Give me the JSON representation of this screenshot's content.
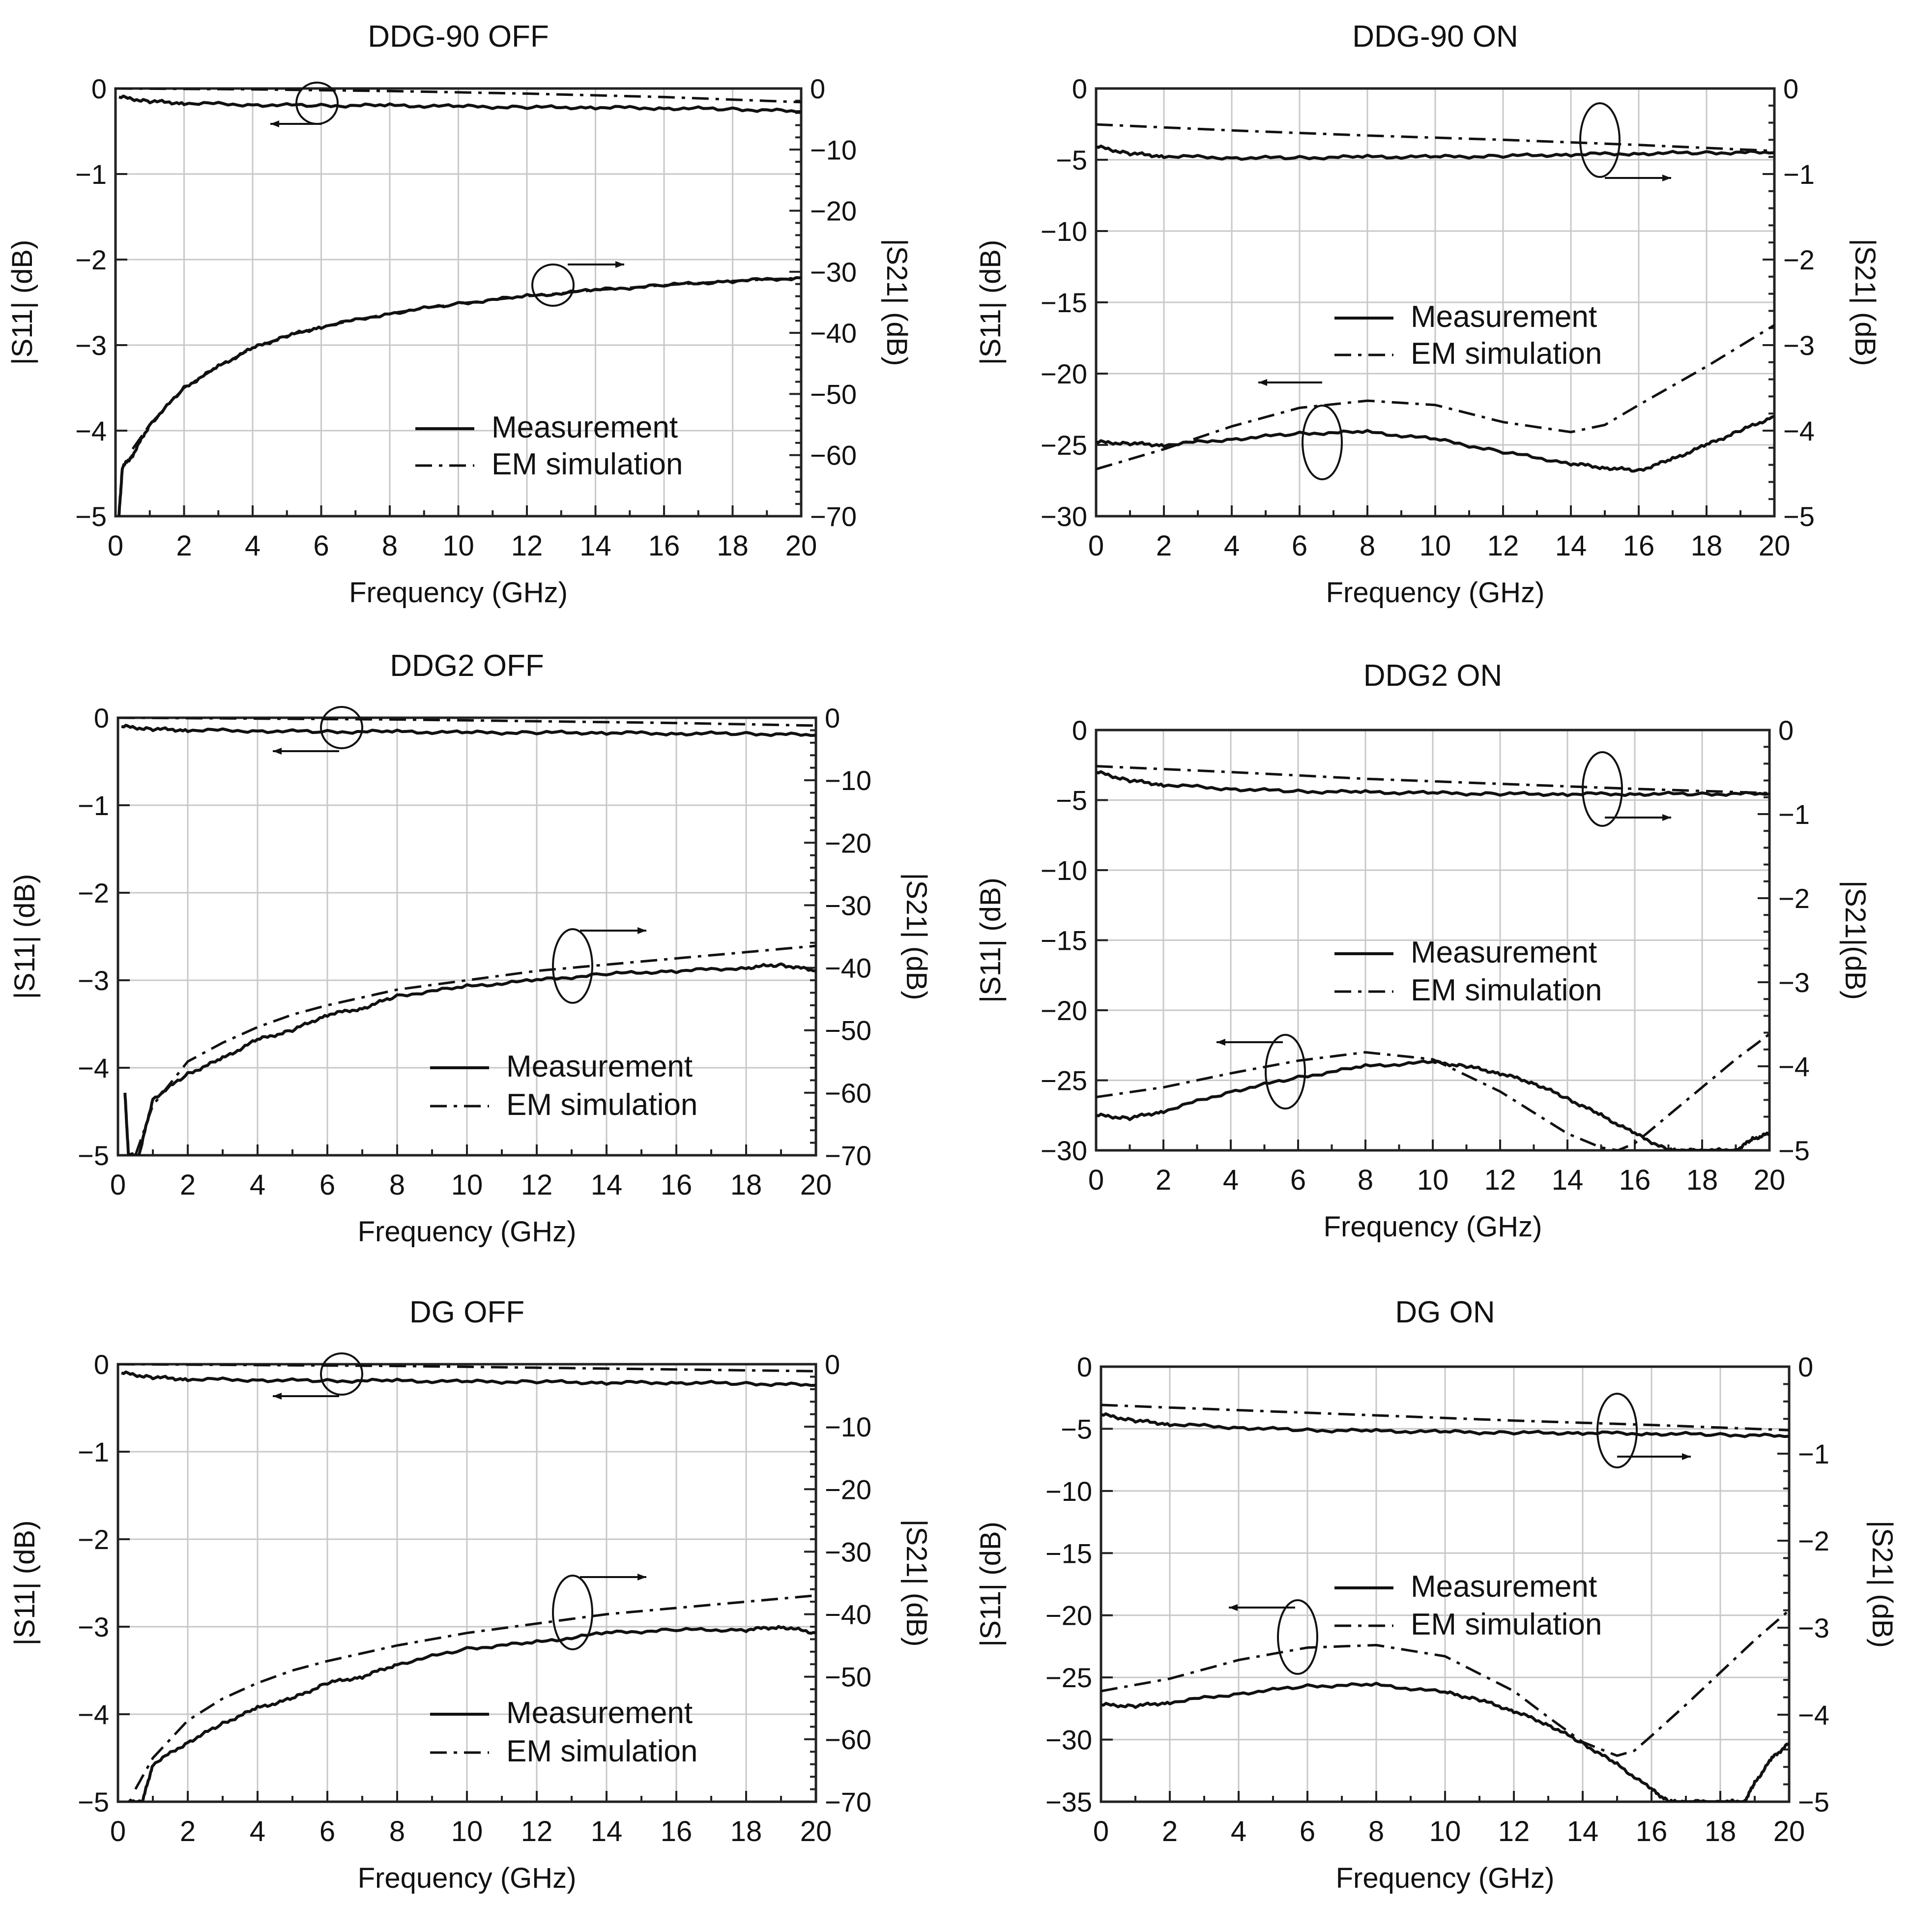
{
  "chart_data": [
    {
      "type": "line",
      "title": "DDG-90 OFF",
      "xlabel": "Frequency (GHz)",
      "ylabel": "|S11| (dB)",
      "y2label": "|S21| (dB)",
      "xlim": [
        0,
        20
      ],
      "ylim": [
        -5,
        0
      ],
      "y2lim": [
        -70,
        0
      ],
      "xticks": [
        "0",
        "2",
        "4",
        "6",
        "8",
        "10",
        "12",
        "14",
        "16",
        "18",
        "20"
      ],
      "yticks": [
        "0",
        "−1",
        "−2",
        "−3",
        "−4",
        "−5"
      ],
      "y2ticks": [
        "0",
        "−10",
        "−20",
        "−30",
        "−40",
        "−50",
        "−60",
        "−70"
      ],
      "legend": [
        "Measurement",
        "EM simulation"
      ],
      "legend_position": "bottom-right",
      "series": [
        {
          "name": "|S11| Measurement",
          "axis": "left",
          "style": "solid",
          "x": [
            0.1,
            1,
            2,
            4,
            6,
            8,
            10,
            12,
            14,
            16,
            18,
            20
          ],
          "y": [
            -0.1,
            -0.15,
            -0.17,
            -0.19,
            -0.2,
            -0.2,
            -0.21,
            -0.22,
            -0.22,
            -0.23,
            -0.24,
            -0.27
          ]
        },
        {
          "name": "|S11| EM simulation",
          "axis": "left",
          "style": "dashdot",
          "x": [
            0,
            4,
            8,
            12,
            16,
            20
          ],
          "y": [
            0,
            -0.01,
            -0.03,
            -0.06,
            -0.1,
            -0.16
          ]
        },
        {
          "name": "|S21| Measurement",
          "axis": "right",
          "style": "solid",
          "x": [
            0.1,
            0.2,
            0.5,
            1,
            2,
            3,
            4,
            5,
            6,
            8,
            10,
            12,
            14,
            16,
            18,
            20
          ],
          "y": [
            -70,
            -62,
            -60,
            -55,
            -49,
            -45.5,
            -42.5,
            -40.5,
            -39,
            -36.8,
            -35.2,
            -34,
            -33,
            -32.2,
            -31.5,
            -31
          ]
        },
        {
          "name": "|S21| EM simulation",
          "axis": "right",
          "style": "dashdot",
          "x": [
            0.5,
            1,
            2,
            3,
            4,
            5,
            6,
            8,
            10,
            12,
            14,
            16,
            18,
            20
          ],
          "y": [
            -59,
            -55,
            -49,
            -45.5,
            -42.5,
            -40.5,
            -39,
            -36.8,
            -35.2,
            -34,
            -33,
            -32.2,
            -31.5,
            -31
          ]
        }
      ]
    },
    {
      "type": "line",
      "title": "DDG-90 ON",
      "xlabel": "Frequency (GHz)",
      "ylabel": "|S11| (dB)",
      "y2label": "|S21| (dB)",
      "xlim": [
        0,
        20
      ],
      "ylim": [
        -30,
        0
      ],
      "y2lim": [
        -5,
        0
      ],
      "xticks": [
        "0",
        "2",
        "4",
        "6",
        "8",
        "10",
        "12",
        "14",
        "16",
        "18",
        "20"
      ],
      "yticks": [
        "0",
        "−5",
        "−10",
        "−15",
        "−20",
        "−25",
        "−30"
      ],
      "y2ticks": [
        "0",
        "−1",
        "−2",
        "−3",
        "−4",
        "−5"
      ],
      "legend": [
        "Measurement",
        "EM simulation"
      ],
      "legend_position": "center-right",
      "series": [
        {
          "name": "|S11| Measurement",
          "axis": "left",
          "style": "solid",
          "x": [
            0,
            1,
            2,
            4,
            6,
            8,
            10,
            12,
            14,
            15,
            16,
            17,
            18,
            19,
            20
          ],
          "y": [
            -24.8,
            -24.9,
            -25,
            -24.6,
            -24.2,
            -24.1,
            -24.6,
            -25.5,
            -26.3,
            -26.6,
            -26.8,
            -26,
            -25,
            -24,
            -23
          ]
        },
        {
          "name": "|S11| EM simulation",
          "axis": "left",
          "style": "dashdot",
          "x": [
            0,
            2,
            4,
            6,
            8,
            10,
            12,
            14,
            15,
            16,
            18,
            20
          ],
          "y": [
            -26.7,
            -25.3,
            -23.7,
            -22.4,
            -21.9,
            -22.2,
            -23.4,
            -24.1,
            -23.6,
            -22.2,
            -19.5,
            -16.6
          ]
        },
        {
          "name": "|S21| Measurement",
          "axis": "right",
          "style": "solid",
          "x": [
            0,
            1,
            2,
            4,
            6,
            8,
            10,
            12,
            14,
            16,
            18,
            20
          ],
          "y": [
            -0.68,
            -0.76,
            -0.79,
            -0.81,
            -0.81,
            -0.8,
            -0.8,
            -0.79,
            -0.77,
            -0.76,
            -0.75,
            -0.75
          ]
        },
        {
          "name": "|S21| EM simulation",
          "axis": "right",
          "style": "dashdot",
          "x": [
            0,
            4,
            8,
            12,
            16,
            20
          ],
          "y": [
            -0.42,
            -0.49,
            -0.55,
            -0.6,
            -0.66,
            -0.73
          ]
        }
      ]
    },
    {
      "type": "line",
      "title": "DDG2 OFF",
      "xlabel": "Frequency (GHz)",
      "ylabel": "|S11| (dB)",
      "y2label": "|S21| (dB)",
      "xlim": [
        0,
        20
      ],
      "ylim": [
        -5,
        0
      ],
      "y2lim": [
        -70,
        0
      ],
      "xticks": [
        "0",
        "2",
        "4",
        "6",
        "8",
        "10",
        "12",
        "14",
        "16",
        "18",
        "20"
      ],
      "yticks": [
        "0",
        "−1",
        "−2",
        "−3",
        "−4",
        "−5"
      ],
      "y2ticks": [
        "0",
        "−10",
        "−20",
        "−30",
        "−40",
        "−50",
        "−60",
        "−70"
      ],
      "legend": [
        "Measurement",
        "EM simulation"
      ],
      "legend_position": "bottom-right",
      "series": [
        {
          "name": "|S11| Measurement",
          "axis": "left",
          "style": "solid",
          "x": [
            0.1,
            1,
            2,
            4,
            6,
            8,
            10,
            12,
            14,
            16,
            18,
            20
          ],
          "y": [
            -0.1,
            -0.13,
            -0.14,
            -0.15,
            -0.16,
            -0.16,
            -0.17,
            -0.17,
            -0.17,
            -0.18,
            -0.18,
            -0.2
          ]
        },
        {
          "name": "|S11| EM simulation",
          "axis": "left",
          "style": "dashdot",
          "x": [
            0,
            4,
            8,
            12,
            16,
            20
          ],
          "y": [
            0,
            -0.01,
            -0.02,
            -0.04,
            -0.06,
            -0.09
          ]
        },
        {
          "name": "|S21| Measurement",
          "axis": "right",
          "style": "solid",
          "x": [
            0.2,
            0.3,
            0.6,
            1,
            2,
            3,
            4,
            5,
            6,
            7,
            8,
            10,
            12,
            14,
            16,
            18,
            19,
            20
          ],
          "y": [
            -60,
            -70,
            -70,
            -61,
            -57,
            -54.5,
            -51.5,
            -50,
            -47.5,
            -46.5,
            -44.5,
            -43,
            -42,
            -41,
            -40.5,
            -40,
            -39.5,
            -40.5
          ]
        },
        {
          "name": "|S21| EM simulation",
          "axis": "right",
          "style": "dashdot",
          "x": [
            0.5,
            1,
            2,
            3,
            4,
            5,
            6,
            8,
            10,
            12,
            14,
            16,
            18,
            20
          ],
          "y": [
            -70,
            -62,
            -55,
            -52,
            -49.5,
            -47.5,
            -46,
            -43.5,
            -42,
            -40.5,
            -39.5,
            -38.5,
            -37.5,
            -36.5
          ]
        }
      ]
    },
    {
      "type": "line",
      "title": "DDG2 ON",
      "xlabel": "Frequency (GHz)",
      "ylabel": "|S11| (dB)",
      "y2label": "|S21|(dB)",
      "xlim": [
        0,
        20
      ],
      "ylim": [
        -30,
        0
      ],
      "y2lim": [
        -5,
        0
      ],
      "xticks": [
        "0",
        "2",
        "4",
        "6",
        "8",
        "10",
        "12",
        "14",
        "16",
        "18",
        "20"
      ],
      "yticks": [
        "0",
        "−5",
        "−10",
        "−15",
        "−20",
        "−25",
        "−30"
      ],
      "y2ticks": [
        "0",
        "−1",
        "−2",
        "−3",
        "−4",
        "−5"
      ],
      "legend": [
        "Measurement",
        "EM simulation"
      ],
      "legend_position": "center-right",
      "series": [
        {
          "name": "|S11| Measurement",
          "axis": "left",
          "style": "solid",
          "x": [
            0,
            1,
            2,
            4,
            6,
            8,
            10,
            11,
            12,
            13,
            14,
            15,
            16,
            17,
            17.5,
            18,
            19,
            19.5,
            20
          ],
          "y": [
            -27.5,
            -27.7,
            -27.2,
            -25.8,
            -24.8,
            -24,
            -23.7,
            -24,
            -24.5,
            -25.2,
            -26.3,
            -27.5,
            -28.8,
            -30,
            -30,
            -30,
            -30,
            -29.2,
            -28.8
          ]
        },
        {
          "name": "|S11| EM simulation",
          "axis": "left",
          "style": "dashdot",
          "x": [
            0,
            2,
            4,
            6,
            8,
            10,
            12,
            13,
            14,
            15,
            15.5,
            16,
            17,
            18,
            19,
            20
          ],
          "y": [
            -26.2,
            -25.5,
            -24.5,
            -23.6,
            -23,
            -23.5,
            -25.8,
            -27.3,
            -28.8,
            -29.8,
            -30,
            -29.5,
            -27.5,
            -25.5,
            -23.5,
            -21.7
          ]
        },
        {
          "name": "|S21| Measurement",
          "axis": "right",
          "style": "solid",
          "x": [
            0,
            1,
            2,
            4,
            6,
            8,
            10,
            12,
            14,
            16,
            18,
            20
          ],
          "y": [
            -0.5,
            -0.6,
            -0.65,
            -0.7,
            -0.73,
            -0.74,
            -0.75,
            -0.76,
            -0.76,
            -0.76,
            -0.76,
            -0.76
          ]
        },
        {
          "name": "|S21| EM simulation",
          "axis": "right",
          "style": "dashdot",
          "x": [
            0,
            4,
            8,
            12,
            16,
            20
          ],
          "y": [
            -0.43,
            -0.5,
            -0.58,
            -0.64,
            -0.7,
            -0.75
          ]
        }
      ]
    },
    {
      "type": "line",
      "title": "DG OFF",
      "xlabel": "Frequency (GHz)",
      "ylabel": "|S11| (dB)",
      "y2label": "|S21| (dB)",
      "xlim": [
        0,
        20
      ],
      "ylim": [
        -5,
        0
      ],
      "y2lim": [
        -70,
        0
      ],
      "xticks": [
        "0",
        "2",
        "4",
        "6",
        "8",
        "10",
        "12",
        "14",
        "16",
        "18",
        "20"
      ],
      "yticks": [
        "0",
        "−1",
        "−2",
        "−3",
        "−4",
        "−5"
      ],
      "y2ticks": [
        "0",
        "−10",
        "−20",
        "−30",
        "−40",
        "−50",
        "−60",
        "−70"
      ],
      "legend": [
        "Measurement",
        "EM simulation"
      ],
      "legend_position": "bottom-right",
      "series": [
        {
          "name": "|S11| Measurement",
          "axis": "left",
          "style": "solid",
          "x": [
            0.1,
            1,
            2,
            4,
            6,
            8,
            10,
            12,
            14,
            16,
            18,
            20
          ],
          "y": [
            -0.1,
            -0.15,
            -0.17,
            -0.18,
            -0.19,
            -0.19,
            -0.2,
            -0.2,
            -0.21,
            -0.21,
            -0.22,
            -0.24
          ]
        },
        {
          "name": "|S11| EM simulation",
          "axis": "left",
          "style": "dashdot",
          "x": [
            0,
            4,
            8,
            12,
            16,
            20
          ],
          "y": [
            0,
            -0.01,
            -0.02,
            -0.04,
            -0.06,
            -0.08
          ]
        },
        {
          "name": "|S21| Measurement",
          "axis": "right",
          "style": "solid",
          "x": [
            0.3,
            0.7,
            1,
            2,
            3,
            4,
            5,
            6,
            7,
            8,
            10,
            12,
            14,
            16,
            18,
            19,
            20
          ],
          "y": [
            -70,
            -70,
            -64,
            -60.5,
            -57.5,
            -55,
            -53.5,
            -51,
            -50,
            -48,
            -45.5,
            -44.5,
            -43,
            -42.5,
            -42.5,
            -42,
            -43
          ]
        },
        {
          "name": "|S21| EM simulation",
          "axis": "right",
          "style": "dashdot",
          "x": [
            0.5,
            1,
            2,
            3,
            4,
            5,
            6,
            8,
            10,
            12,
            14,
            16,
            18,
            20
          ],
          "y": [
            -68,
            -63,
            -57,
            -53.5,
            -51,
            -49,
            -47.5,
            -45,
            -43,
            -41.5,
            -40,
            -39,
            -38,
            -37
          ]
        }
      ]
    },
    {
      "type": "line",
      "title": "DG ON",
      "xlabel": "Frequency (GHz)",
      "ylabel": "|S11| (dB)",
      "y2label": "|S21| (dB)",
      "xlim": [
        0,
        20
      ],
      "ylim": [
        -35,
        0
      ],
      "y2lim": [
        -5,
        0
      ],
      "xticks": [
        "0",
        "2",
        "4",
        "6",
        "8",
        "10",
        "12",
        "14",
        "16",
        "18",
        "20"
      ],
      "yticks": [
        "0",
        "−5",
        "−10",
        "−15",
        "−20",
        "−25",
        "−30",
        "−35"
      ],
      "y2ticks": [
        "0",
        "−1",
        "−2",
        "−3",
        "−4",
        "−5"
      ],
      "legend": [
        "Measurement",
        "EM simulation"
      ],
      "legend_position": "center-right",
      "series": [
        {
          "name": "|S11| Measurement",
          "axis": "left",
          "style": "solid",
          "x": [
            0,
            1,
            2,
            4,
            6,
            8,
            10,
            11,
            12,
            13,
            14,
            15,
            16,
            16.5,
            17,
            18,
            18.7,
            19,
            19.5,
            20
          ],
          "y": [
            -27.2,
            -27.3,
            -27,
            -26.3,
            -25.7,
            -25.6,
            -26.2,
            -26.8,
            -27.7,
            -28.8,
            -30.3,
            -32,
            -34,
            -35,
            -35,
            -35,
            -35,
            -33.5,
            -31.5,
            -30.3
          ]
        },
        {
          "name": "|S11| EM simulation",
          "axis": "left",
          "style": "dashdot",
          "x": [
            0,
            2,
            4,
            6,
            8,
            10,
            12,
            13,
            14,
            15,
            15.5,
            16,
            17,
            18,
            19,
            20
          ],
          "y": [
            -26.1,
            -25.1,
            -23.6,
            -22.6,
            -22.4,
            -23.3,
            -26.1,
            -28.2,
            -30.2,
            -31.3,
            -30.9,
            -29.7,
            -27.2,
            -24.6,
            -22,
            -19.6
          ]
        },
        {
          "name": "|S21| Measurement",
          "axis": "right",
          "style": "solid",
          "x": [
            0,
            1,
            2,
            4,
            6,
            8,
            10,
            12,
            14,
            16,
            18,
            20
          ],
          "y": [
            -0.55,
            -0.62,
            -0.66,
            -0.7,
            -0.73,
            -0.74,
            -0.75,
            -0.76,
            -0.76,
            -0.77,
            -0.78,
            -0.8
          ]
        },
        {
          "name": "|S21| EM simulation",
          "axis": "right",
          "style": "dashdot",
          "x": [
            0,
            4,
            8,
            12,
            16,
            20
          ],
          "y": [
            -0.44,
            -0.5,
            -0.56,
            -0.62,
            -0.67,
            -0.73
          ]
        }
      ]
    }
  ]
}
